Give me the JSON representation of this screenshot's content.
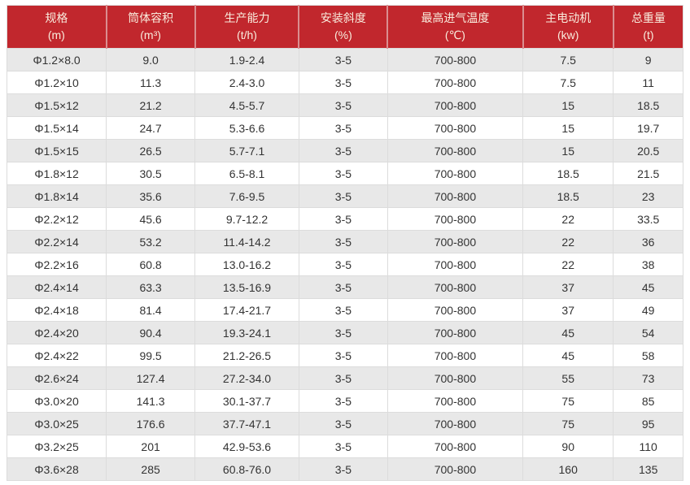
{
  "theme": {
    "header_bg": "#c1272d",
    "header_text": "#f9ecdd",
    "header_divider": "#da8e90",
    "row_bg": "#ffffff",
    "row_alt_bg": "#e8e8e8",
    "border_color": "#dcdcdc",
    "cell_text": "#333333",
    "page_bg": "#ffffff"
  },
  "table": {
    "columns": [
      {
        "title": "规格",
        "unit": "(m)"
      },
      {
        "title": "筒体容积",
        "unit": "(m³)"
      },
      {
        "title": "生产能力",
        "unit": "(t/h)"
      },
      {
        "title": "安装斜度",
        "unit": "(%)"
      },
      {
        "title": "最高进气温度",
        "unit": "(℃)"
      },
      {
        "title": "主电动机",
        "unit": "(kw)"
      },
      {
        "title": "总重量",
        "unit": "(t)"
      }
    ]
  },
  "chart_data": {
    "type": "table",
    "title": "",
    "columns": [
      "规格 (m)",
      "筒体容积 (m³)",
      "生产能力 (t/h)",
      "安装斜度 (%)",
      "最高进气温度 (℃)",
      "主电动机 (kw)",
      "总重量 (t)"
    ],
    "rows": [
      [
        "Φ1.2×8.0",
        "9.0",
        "1.9-2.4",
        "3-5",
        "700-800",
        "7.5",
        "9"
      ],
      [
        "Φ1.2×10",
        "11.3",
        "2.4-3.0",
        "3-5",
        "700-800",
        "7.5",
        "11"
      ],
      [
        "Φ1.5×12",
        "21.2",
        "4.5-5.7",
        "3-5",
        "700-800",
        "15",
        "18.5"
      ],
      [
        "Φ1.5×14",
        "24.7",
        "5.3-6.6",
        "3-5",
        "700-800",
        "15",
        "19.7"
      ],
      [
        "Φ1.5×15",
        "26.5",
        "5.7-7.1",
        "3-5",
        "700-800",
        "15",
        "20.5"
      ],
      [
        "Φ1.8×12",
        "30.5",
        "6.5-8.1",
        "3-5",
        "700-800",
        "18.5",
        "21.5"
      ],
      [
        "Φ1.8×14",
        "35.6",
        "7.6-9.5",
        "3-5",
        "700-800",
        "18.5",
        "23"
      ],
      [
        "Φ2.2×12",
        "45.6",
        "9.7-12.2",
        "3-5",
        "700-800",
        "22",
        "33.5"
      ],
      [
        "Φ2.2×14",
        "53.2",
        "11.4-14.2",
        "3-5",
        "700-800",
        "22",
        "36"
      ],
      [
        "Φ2.2×16",
        "60.8",
        "13.0-16.2",
        "3-5",
        "700-800",
        "22",
        "38"
      ],
      [
        "Φ2.4×14",
        "63.3",
        "13.5-16.9",
        "3-5",
        "700-800",
        "37",
        "45"
      ],
      [
        "Φ2.4×18",
        "81.4",
        "17.4-21.7",
        "3-5",
        "700-800",
        "37",
        "49"
      ],
      [
        "Φ2.4×20",
        "90.4",
        "19.3-24.1",
        "3-5",
        "700-800",
        "45",
        "54"
      ],
      [
        "Φ2.4×22",
        "99.5",
        "21.2-26.5",
        "3-5",
        "700-800",
        "45",
        "58"
      ],
      [
        "Φ2.6×24",
        "127.4",
        "27.2-34.0",
        "3-5",
        "700-800",
        "55",
        "73"
      ],
      [
        "Φ3.0×20",
        "141.3",
        "30.1-37.7",
        "3-5",
        "700-800",
        "75",
        "85"
      ],
      [
        "Φ3.0×25",
        "176.6",
        "37.7-47.1",
        "3-5",
        "700-800",
        "75",
        "95"
      ],
      [
        "Φ3.2×25",
        "201",
        "42.9-53.6",
        "3-5",
        "700-800",
        "90",
        "110"
      ],
      [
        "Φ3.6×28",
        "285",
        "60.8-76.0",
        "3-5",
        "700-800",
        "160",
        "135"
      ]
    ]
  }
}
